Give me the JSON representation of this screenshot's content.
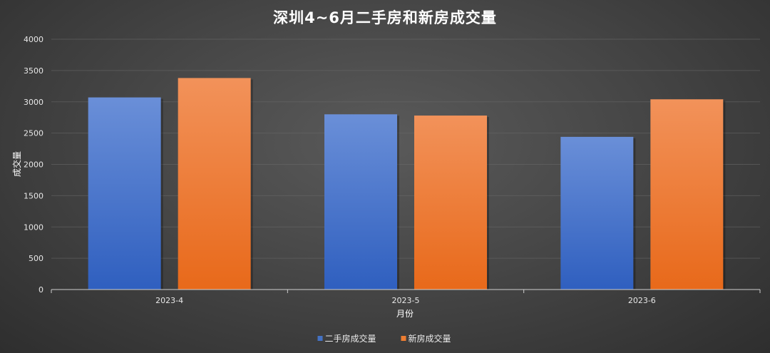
{
  "chart_data": {
    "type": "bar",
    "title": "深圳4~6月二手房和新房成交量",
    "xlabel": "月份",
    "ylabel": "成交量",
    "categories": [
      "2023-4",
      "2023-5",
      "2023-6"
    ],
    "series": [
      {
        "name": "二手房成交量",
        "values": [
          3070,
          2800,
          2440
        ],
        "color": "#4472c4"
      },
      {
        "name": "新房成交量",
        "values": [
          3380,
          2780,
          3040
        ],
        "color": "#ed7d31"
      }
    ],
    "ylim": [
      0,
      4000
    ],
    "yticks": [
      "0",
      "500",
      "1000",
      "1500",
      "2000",
      "2500",
      "3000",
      "3500",
      "4000"
    ],
    "grid": true,
    "legend": "bottom-center"
  }
}
